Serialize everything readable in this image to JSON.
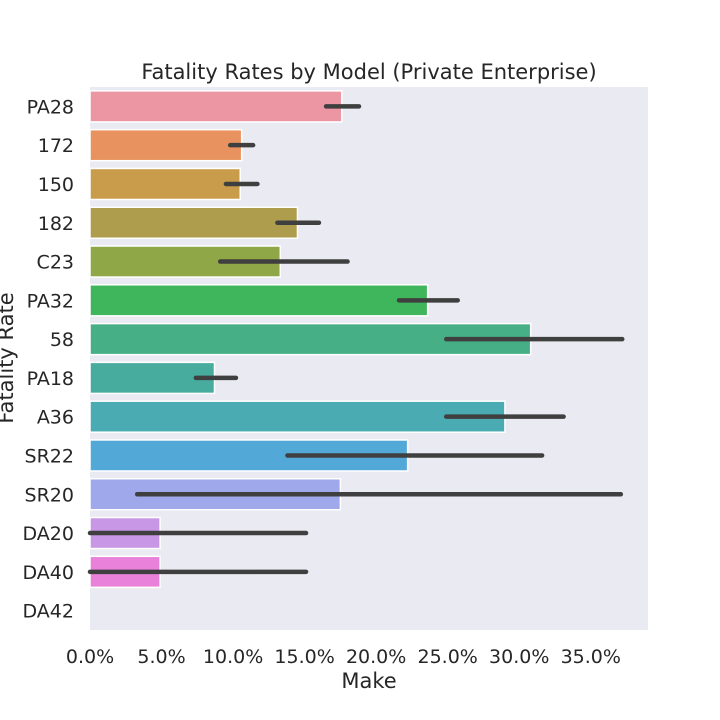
{
  "chart_data": {
    "type": "bar",
    "orientation": "horizontal",
    "title": "Fatality Rates by Model (Private Enterprise)",
    "xlabel": "Make",
    "ylabel": "Fatality Rate",
    "xlim": [
      0,
      0.39
    ],
    "x_tick_values": [
      0,
      0.05,
      0.1,
      0.15,
      0.2,
      0.25,
      0.3,
      0.35
    ],
    "x_tick_labels": [
      "0.0%",
      "5.0%",
      "10.0%",
      "15.0%",
      "20.0%",
      "25.0%",
      "30.0%",
      "35.0%"
    ],
    "categories": [
      "PA28",
      "172",
      "150",
      "182",
      "C23",
      "PA32",
      "58",
      "PA18",
      "A36",
      "SR22",
      "SR20",
      "DA20",
      "DA40",
      "DA42"
    ],
    "values": [
      0.176,
      0.106,
      0.105,
      0.145,
      0.133,
      0.236,
      0.308,
      0.087,
      0.29,
      0.222,
      0.175,
      0.049,
      0.049,
      0.0
    ],
    "ci_low": [
      0.165,
      0.098,
      0.095,
      0.131,
      0.091,
      0.216,
      0.249,
      0.074,
      0.249,
      0.138,
      0.033,
      0.0,
      0.0,
      null
    ],
    "ci_high": [
      0.188,
      0.114,
      0.117,
      0.16,
      0.18,
      0.257,
      0.372,
      0.102,
      0.331,
      0.316,
      0.371,
      0.151,
      0.151,
      null
    ],
    "colors": [
      "#ec96a3",
      "#e8935f",
      "#c99c4c",
      "#ae9d4d",
      "#8fa747",
      "#3fb65c",
      "#46af85",
      "#47ac9e",
      "#4aabb3",
      "#52a8d6",
      "#9fa8ea",
      "#c897e5",
      "#e981db",
      "#ec90bd"
    ],
    "grid": false,
    "legend": "none"
  }
}
